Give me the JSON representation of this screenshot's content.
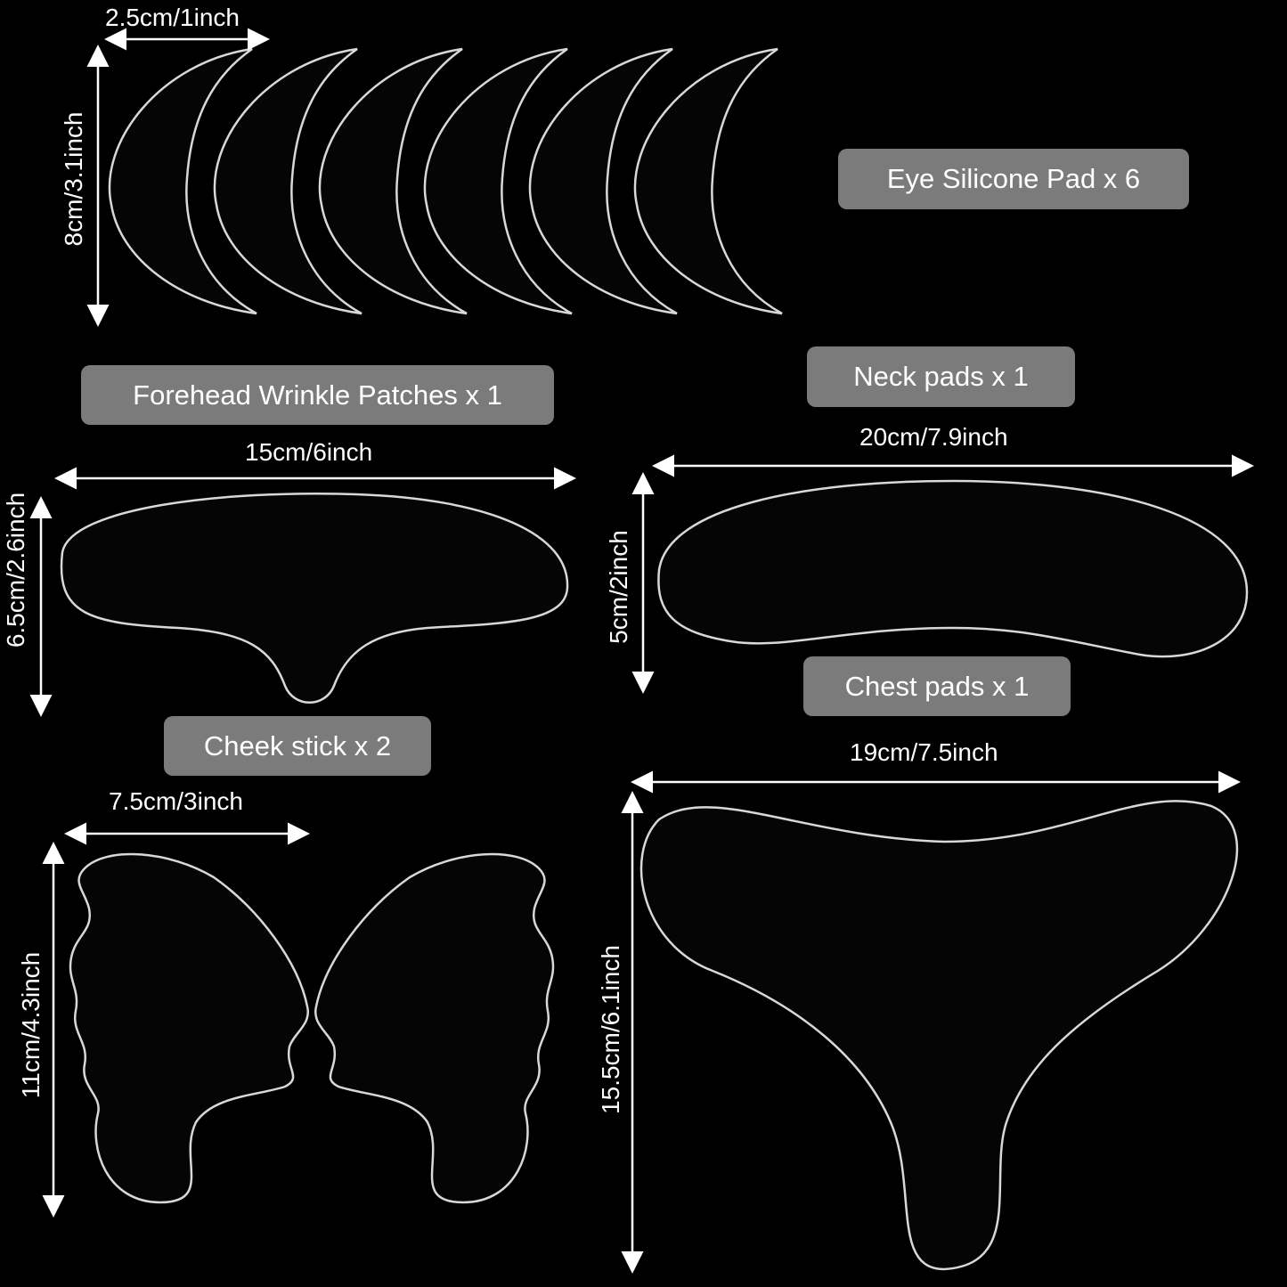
{
  "labels": {
    "eye": "Eye Silicone Pad x 6",
    "forehead": "Forehead Wrinkle Patches x 1",
    "neck": "Neck pads x 1",
    "chest": "Chest pads x 1",
    "cheek": "Cheek stick x 2"
  },
  "dimensions": {
    "eye_width": "2.5cm/1inch",
    "eye_height": "8cm/3.1inch",
    "forehead_width": "15cm/6inch",
    "forehead_height": "6.5cm/2.6inch",
    "neck_width": "20cm/7.9inch",
    "neck_height": "5cm/2inch",
    "chest_width": "19cm/7.5inch",
    "chest_height": "15.5cm/6.1inch",
    "cheek_width": "7.5cm/3inch",
    "cheek_height": "11cm/4.3inch"
  },
  "colors": {
    "background": "#000000",
    "label_bg": "#7b7b7b",
    "pad_outline": "#d8d8d8"
  }
}
